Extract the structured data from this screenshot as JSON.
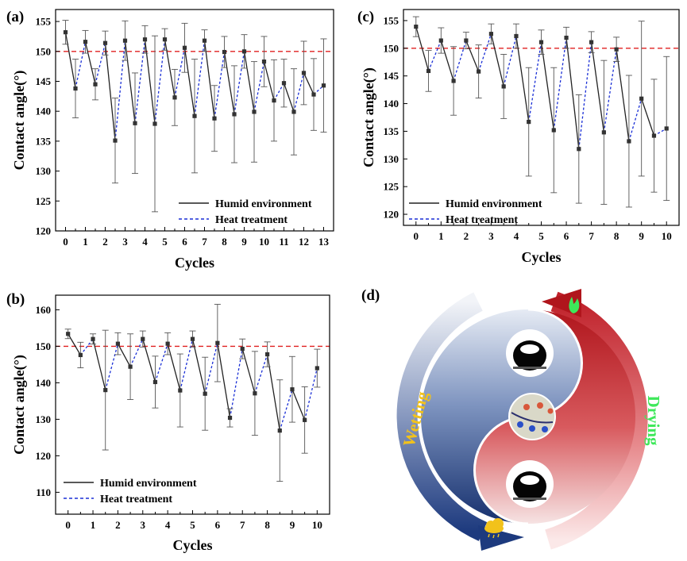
{
  "chart_data": [
    {
      "id": "a",
      "panel_label": "(a)",
      "type": "line",
      "xlabel": "Cycles",
      "ylabel": "Contact angle(°)",
      "xlim": [
        -0.5,
        13.5
      ],
      "ylim": [
        120,
        157
      ],
      "xticks": [
        0,
        1,
        2,
        3,
        4,
        5,
        6,
        7,
        8,
        9,
        10,
        11,
        12,
        13
      ],
      "yticks": [
        120,
        125,
        130,
        135,
        140,
        145,
        150,
        155
      ],
      "reference_line": 150,
      "legend": {
        "position": "bottom-right",
        "entries": [
          "Humid environment",
          "Heat treatment"
        ]
      },
      "points": [
        {
          "x": 0,
          "y": 153.2,
          "err": 2.0
        },
        {
          "x": 0.5,
          "y": 143.8,
          "err": 4.9
        },
        {
          "x": 1,
          "y": 151.6,
          "err": 1.9
        },
        {
          "x": 1.5,
          "y": 144.5,
          "err": 2.6
        },
        {
          "x": 2,
          "y": 151.4,
          "err": 2.0
        },
        {
          "x": 2.5,
          "y": 135.1,
          "err": 7.1
        },
        {
          "x": 3,
          "y": 151.8,
          "err": 3.3
        },
        {
          "x": 3.5,
          "y": 138.0,
          "err": 8.4
        },
        {
          "x": 4,
          "y": 152.0,
          "err": 2.3
        },
        {
          "x": 4.5,
          "y": 137.9,
          "err": 14.7
        },
        {
          "x": 5,
          "y": 152.0,
          "err": 1.8
        },
        {
          "x": 5.5,
          "y": 142.3,
          "err": 4.7
        },
        {
          "x": 6,
          "y": 150.6,
          "err": 4.1
        },
        {
          "x": 6.5,
          "y": 139.2,
          "err": 9.5
        },
        {
          "x": 7,
          "y": 151.8,
          "err": 1.8
        },
        {
          "x": 7.5,
          "y": 138.8,
          "err": 5.5
        },
        {
          "x": 8,
          "y": 149.9,
          "err": 2.6
        },
        {
          "x": 8.5,
          "y": 139.5,
          "err": 8.1
        },
        {
          "x": 9,
          "y": 150.0,
          "err": 2.8
        },
        {
          "x": 9.5,
          "y": 139.9,
          "err": 8.4
        },
        {
          "x": 10,
          "y": 148.3,
          "err": 4.2
        },
        {
          "x": 10.5,
          "y": 141.8,
          "err": 6.8
        },
        {
          "x": 11,
          "y": 144.7,
          "err": 4.0
        },
        {
          "x": 11.5,
          "y": 139.9,
          "err": 7.2
        },
        {
          "x": 12,
          "y": 146.4,
          "err": 5.3
        },
        {
          "x": 12.5,
          "y": 142.8,
          "err": 6.0
        },
        {
          "x": 13,
          "y": 144.3,
          "err": 7.8
        }
      ]
    },
    {
      "id": "b",
      "panel_label": "(b)",
      "type": "line",
      "xlabel": "Cycles",
      "ylabel": "Contact angle(°)",
      "xlim": [
        -0.5,
        10.5
      ],
      "ylim": [
        104,
        164
      ],
      "xticks": [
        0,
        1,
        2,
        3,
        4,
        5,
        6,
        7,
        8,
        9,
        10
      ],
      "yticks": [
        110,
        120,
        130,
        140,
        150,
        160
      ],
      "reference_line": 150,
      "legend": {
        "position": "bottom-left",
        "entries": [
          "Humid environment",
          "Heat treatment"
        ]
      },
      "points": [
        {
          "x": 0,
          "y": 153.4,
          "err": 1.3
        },
        {
          "x": 0.5,
          "y": 147.6,
          "err": 3.5
        },
        {
          "x": 1,
          "y": 152.0,
          "err": 1.4
        },
        {
          "x": 1.5,
          "y": 138.0,
          "err": 16.4
        },
        {
          "x": 2,
          "y": 150.7,
          "err": 3.0
        },
        {
          "x": 2.5,
          "y": 144.4,
          "err": 9.0
        },
        {
          "x": 3,
          "y": 152.0,
          "err": 2.2
        },
        {
          "x": 3.5,
          "y": 140.2,
          "err": 7.1
        },
        {
          "x": 4,
          "y": 150.7,
          "err": 3.0
        },
        {
          "x": 4.5,
          "y": 137.9,
          "err": 10.0
        },
        {
          "x": 5,
          "y": 152.0,
          "err": 2.2
        },
        {
          "x": 5.5,
          "y": 137.0,
          "err": 10.0
        },
        {
          "x": 6,
          "y": 150.9,
          "err": 10.6
        },
        {
          "x": 6.5,
          "y": 130.4,
          "err": 2.5
        },
        {
          "x": 7,
          "y": 149.3,
          "err": 2.7
        },
        {
          "x": 7.5,
          "y": 137.1,
          "err": 11.5
        },
        {
          "x": 8,
          "y": 147.8,
          "err": 3.4
        },
        {
          "x": 8.5,
          "y": 126.9,
          "err": 13.9
        },
        {
          "x": 9,
          "y": 138.2,
          "err": 9.0
        },
        {
          "x": 9.5,
          "y": 129.8,
          "err": 9.1
        },
        {
          "x": 10,
          "y": 144.0,
          "err": 5.2
        }
      ]
    },
    {
      "id": "c",
      "panel_label": "(c)",
      "type": "line",
      "xlabel": "Cycles",
      "ylabel": "Contact angle(°)",
      "xlim": [
        -0.5,
        10.5
      ],
      "ylim": [
        118,
        157
      ],
      "xticks": [
        0,
        1,
        2,
        3,
        4,
        5,
        6,
        7,
        8,
        9,
        10
      ],
      "yticks": [
        120,
        125,
        130,
        135,
        140,
        145,
        150,
        155
      ],
      "reference_line": 150,
      "legend": {
        "position": "bottom-left",
        "entries": [
          "Humid environment",
          "Heat treatment"
        ]
      },
      "points": [
        {
          "x": 0,
          "y": 153.9,
          "err": 1.8
        },
        {
          "x": 0.5,
          "y": 145.9,
          "err": 3.7
        },
        {
          "x": 1,
          "y": 151.4,
          "err": 2.3
        },
        {
          "x": 1.5,
          "y": 144.1,
          "err": 6.2
        },
        {
          "x": 2,
          "y": 151.4,
          "err": 1.5
        },
        {
          "x": 2.5,
          "y": 145.8,
          "err": 4.8
        },
        {
          "x": 3,
          "y": 152.6,
          "err": 1.8
        },
        {
          "x": 3.5,
          "y": 143.1,
          "err": 5.8
        },
        {
          "x": 4,
          "y": 152.2,
          "err": 2.2
        },
        {
          "x": 4.5,
          "y": 136.7,
          "err": 9.8
        },
        {
          "x": 5,
          "y": 151.1,
          "err": 2.2
        },
        {
          "x": 5.5,
          "y": 135.2,
          "err": 11.3
        },
        {
          "x": 6,
          "y": 151.9,
          "err": 1.9
        },
        {
          "x": 6.5,
          "y": 131.8,
          "err": 9.8
        },
        {
          "x": 7,
          "y": 151.1,
          "err": 1.9
        },
        {
          "x": 7.5,
          "y": 134.8,
          "err": 13.0
        },
        {
          "x": 8,
          "y": 149.8,
          "err": 2.2
        },
        {
          "x": 8.5,
          "y": 133.2,
          "err": 11.9
        },
        {
          "x": 9,
          "y": 140.9,
          "err": 14.0
        },
        {
          "x": 9.5,
          "y": 134.2,
          "err": 10.2
        },
        {
          "x": 10,
          "y": 135.5,
          "err": 13.0
        }
      ]
    }
  ],
  "panel_d": {
    "label": "(d)",
    "wetting_label": "Wetting",
    "drying_label": "Drying",
    "colors": {
      "red": "#c0222b",
      "blue": "#1e3577",
      "yellow": "#f2c21b",
      "green": "#3ee85a",
      "reference_red": "#e02020",
      "heat_blue": "#1a2fd6"
    }
  }
}
